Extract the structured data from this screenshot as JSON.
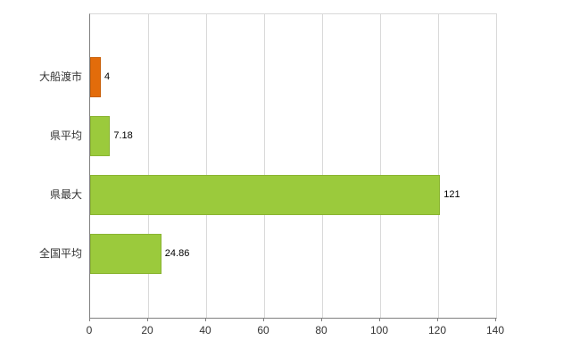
{
  "chart_data": {
    "type": "bar",
    "orientation": "horizontal",
    "title": "",
    "xlabel": "",
    "ylabel": "",
    "categories": [
      "大船渡市",
      "県平均",
      "県最大",
      "全国平均"
    ],
    "values": [
      4,
      7.18,
      121,
      24.86
    ],
    "value_labels": [
      "4",
      "7.18",
      "121",
      "24.86"
    ],
    "bar_colors": [
      "#e36c0a",
      "#9bca3c",
      "#9bca3c",
      "#9bca3c"
    ],
    "xlim": [
      0,
      140
    ],
    "xticks": [
      "0",
      "20",
      "40",
      "60",
      "80",
      "100",
      "120",
      "140"
    ],
    "grid": "vertical",
    "legend": "none"
  },
  "colors": {
    "highlight_bar": "#e36c0a",
    "highlight_bar_border": "#c85f08",
    "default_bar": "#9bca3c",
    "default_bar_border": "#8ab432",
    "gridline": "#d9d9d9",
    "axis": "#808080",
    "background": "#ffffff",
    "label_text": "#333333"
  }
}
